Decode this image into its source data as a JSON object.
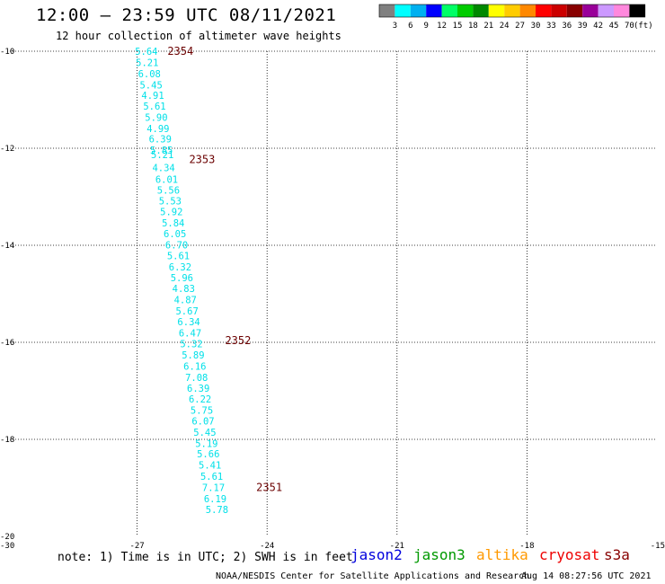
{
  "header": {
    "title": "12:00 – 23:59 UTC 08/11/2021",
    "subtitle": "12 hour collection of altimeter wave heights"
  },
  "colorbar": {
    "colors": [
      "#808080",
      "#00ffff",
      "#00b0f0",
      "#0000ff",
      "#00ff66",
      "#00cc00",
      "#008800",
      "#ffff00",
      "#ffcc00",
      "#ff8800",
      "#ff0000",
      "#cc0000",
      "#880000",
      "#990099",
      "#cc99ff",
      "#ff88dd",
      "#000000"
    ],
    "labels": [
      "3",
      "6",
      "9",
      "12",
      "15",
      "18",
      "21",
      "24",
      "27",
      "30",
      "33",
      "36",
      "39",
      "42",
      "45",
      "70",
      "(ft)"
    ]
  },
  "chart_data": {
    "type": "scatter",
    "title": "12:00 – 23:59 UTC 08/11/2021",
    "subtitle": "12 hour collection of altimeter wave heights",
    "xlabel": "",
    "ylabel": "",
    "xlim": [
      -30,
      -15
    ],
    "ylim": [
      -20,
      -10
    ],
    "x_ticks": [
      -30,
      -27,
      -24,
      -21,
      -18,
      -15
    ],
    "y_ticks": [
      -10,
      -12,
      -14,
      -16,
      -18,
      -20
    ],
    "grid": true,
    "series": [
      {
        "name": "s3a",
        "color": "#00e0e8",
        "points": [
          {
            "lon": -27.05,
            "lat": -10.0,
            "swh": 5.64
          },
          {
            "lon": -27.03,
            "lat": -10.23,
            "swh": 5.21
          },
          {
            "lon": -26.98,
            "lat": -10.46,
            "swh": 6.08
          },
          {
            "lon": -26.94,
            "lat": -10.69,
            "swh": 5.45
          },
          {
            "lon": -26.9,
            "lat": -10.91,
            "swh": 4.91
          },
          {
            "lon": -26.86,
            "lat": -11.13,
            "swh": 5.61
          },
          {
            "lon": -26.82,
            "lat": -11.36,
            "swh": 5.9
          },
          {
            "lon": -26.78,
            "lat": -11.59,
            "swh": 4.99
          },
          {
            "lon": -26.73,
            "lat": -11.81,
            "swh": 6.39
          },
          {
            "lon": -26.7,
            "lat": -12.04,
            "swh": 5.85
          },
          {
            "lon": -26.68,
            "lat": -12.13,
            "swh": 5.21
          },
          {
            "lon": -26.65,
            "lat": -12.4,
            "swh": 4.34
          },
          {
            "lon": -26.58,
            "lat": -12.64,
            "swh": 6.01
          },
          {
            "lon": -26.54,
            "lat": -12.86,
            "swh": 5.56
          },
          {
            "lon": -26.5,
            "lat": -13.08,
            "swh": 5.53
          },
          {
            "lon": -26.47,
            "lat": -13.31,
            "swh": 5.92
          },
          {
            "lon": -26.43,
            "lat": -13.54,
            "swh": 5.84
          },
          {
            "lon": -26.39,
            "lat": -13.76,
            "swh": 6.05
          },
          {
            "lon": -26.35,
            "lat": -13.99,
            "swh": 6.7
          },
          {
            "lon": -26.31,
            "lat": -14.21,
            "swh": 5.61
          },
          {
            "lon": -26.27,
            "lat": -14.44,
            "swh": 6.32
          },
          {
            "lon": -26.23,
            "lat": -14.67,
            "swh": 5.96
          },
          {
            "lon": -26.19,
            "lat": -14.89,
            "swh": 4.83
          },
          {
            "lon": -26.15,
            "lat": -15.12,
            "swh": 4.87
          },
          {
            "lon": -26.11,
            "lat": -15.35,
            "swh": 5.67
          },
          {
            "lon": -26.07,
            "lat": -15.57,
            "swh": 6.34
          },
          {
            "lon": -26.04,
            "lat": -15.81,
            "swh": 6.47
          },
          {
            "lon": -26.01,
            "lat": -16.03,
            "swh": 5.32
          },
          {
            "lon": -25.97,
            "lat": -16.26,
            "swh": 5.89
          },
          {
            "lon": -25.93,
            "lat": -16.49,
            "swh": 6.16
          },
          {
            "lon": -25.89,
            "lat": -16.72,
            "swh": 7.08
          },
          {
            "lon": -25.85,
            "lat": -16.94,
            "swh": 6.39
          },
          {
            "lon": -25.81,
            "lat": -17.17,
            "swh": 6.22
          },
          {
            "lon": -25.77,
            "lat": -17.4,
            "swh": 5.75
          },
          {
            "lon": -25.74,
            "lat": -17.62,
            "swh": 6.07
          },
          {
            "lon": -25.7,
            "lat": -17.85,
            "swh": 5.45
          },
          {
            "lon": -25.66,
            "lat": -18.08,
            "swh": 5.19
          },
          {
            "lon": -25.62,
            "lat": -18.3,
            "swh": 5.66
          },
          {
            "lon": -25.58,
            "lat": -18.53,
            "swh": 5.41
          },
          {
            "lon": -25.54,
            "lat": -18.76,
            "swh": 5.61
          },
          {
            "lon": -25.5,
            "lat": -18.99,
            "swh": 7.17
          },
          {
            "lon": -25.46,
            "lat": -19.22,
            "swh": 6.19
          },
          {
            "lon": -25.42,
            "lat": -19.44,
            "swh": 5.78
          }
        ]
      }
    ],
    "time_labels": [
      {
        "text": "2354",
        "lon": -26.3,
        "lat": -10.0
      },
      {
        "text": "2353",
        "lon": -25.8,
        "lat": -12.23
      },
      {
        "text": "2352",
        "lon": -24.97,
        "lat": -15.96
      },
      {
        "text": "2351",
        "lon": -24.25,
        "lat": -18.99
      }
    ]
  },
  "footer": {
    "note": "note: 1) Time is in UTC; 2) SWH is in feet",
    "satellites": [
      {
        "name": "jason2",
        "color": "#0000dd"
      },
      {
        "name": "jason3",
        "color": "#009900"
      },
      {
        "name": "altika",
        "color": "#ff9900"
      },
      {
        "name": "cryosat",
        "color": "#ee0000"
      },
      {
        "name": "s3a",
        "color": "#880000"
      }
    ],
    "credit": "NOAA/NESDIS Center for Satellite Applications and Research",
    "timestamp": "Aug 14 08:27:56 UTC 2021"
  }
}
